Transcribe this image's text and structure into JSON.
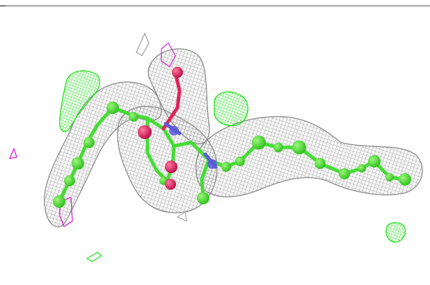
{
  "scene": {
    "background_color": "#ffffff",
    "mesh_color": "#9a9a9a",
    "positive_density_color": "#22e01a",
    "negative_density_color": "#d81bd8",
    "carbon_color": "#5ae43a",
    "oxygen_color": "#e0225a",
    "nitrogen_color": "#5a5ad8",
    "bond_color": "#44dd33"
  }
}
